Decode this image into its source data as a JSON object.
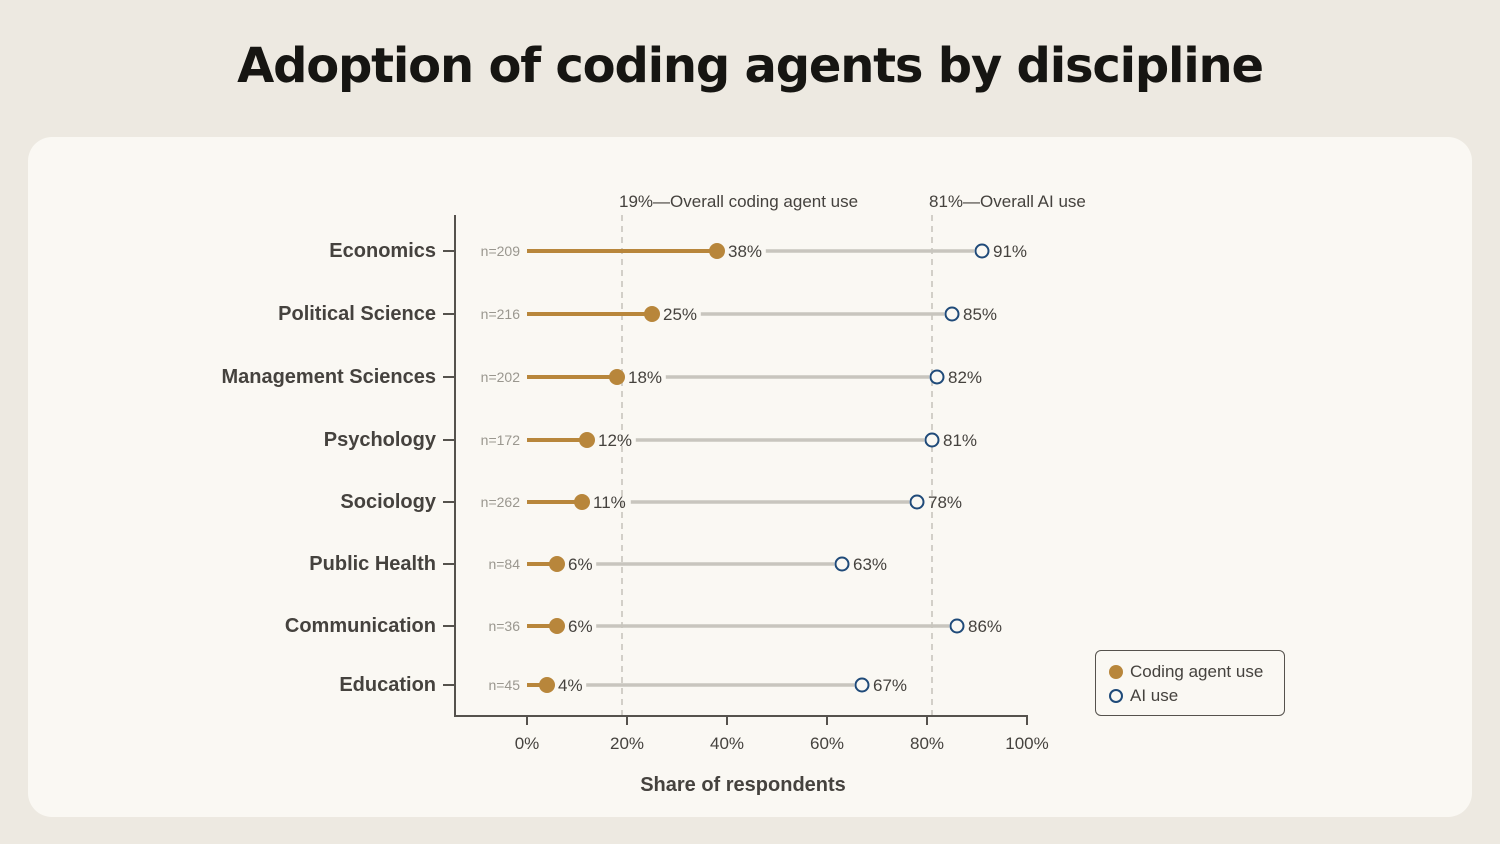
{
  "title": "Adoption of coding agents by discipline",
  "colors": {
    "coding": "#b8863b",
    "ai_stroke": "#1f4a79",
    "gap_line": "#c8c5be",
    "axis": "#55524d",
    "ref_line": "#d2cfc8",
    "text": "#45423e",
    "muted": "#9a978f"
  },
  "chart_data": {
    "type": "dumbbell",
    "xlabel": "Share of respondents",
    "xlim": [
      0,
      100
    ],
    "x_ticks": [
      "0%",
      "20%",
      "40%",
      "60%",
      "80%",
      "100%"
    ],
    "x_tick_values": [
      0,
      20,
      40,
      60,
      80,
      100
    ],
    "reference_lines": [
      {
        "value": 19,
        "label": "19%—Overall coding agent use"
      },
      {
        "value": 81,
        "label": "81%—Overall AI use"
      }
    ],
    "categories": [
      "Economics",
      "Political Science",
      "Management Sciences",
      "Psychology",
      "Sociology",
      "Public Health",
      "Communication",
      "Education"
    ],
    "n": [
      "n=209",
      "n=216",
      "n=202",
      "n=172",
      "n=262",
      "n=84",
      "n=36",
      "n=45"
    ],
    "series": [
      {
        "name": "Coding agent use",
        "values": [
          38,
          25,
          18,
          12,
          11,
          6,
          6,
          4
        ],
        "labels": [
          "38%",
          "25%",
          "18%",
          "12%",
          "11%",
          "6%",
          "6%",
          "4%"
        ]
      },
      {
        "name": "AI use",
        "values": [
          91,
          85,
          82,
          81,
          78,
          63,
          86,
          67
        ],
        "labels": [
          "91%",
          "85%",
          "82%",
          "81%",
          "78%",
          "63%",
          "86%",
          "67%"
        ]
      }
    ],
    "legend_position": "bottom-right"
  }
}
